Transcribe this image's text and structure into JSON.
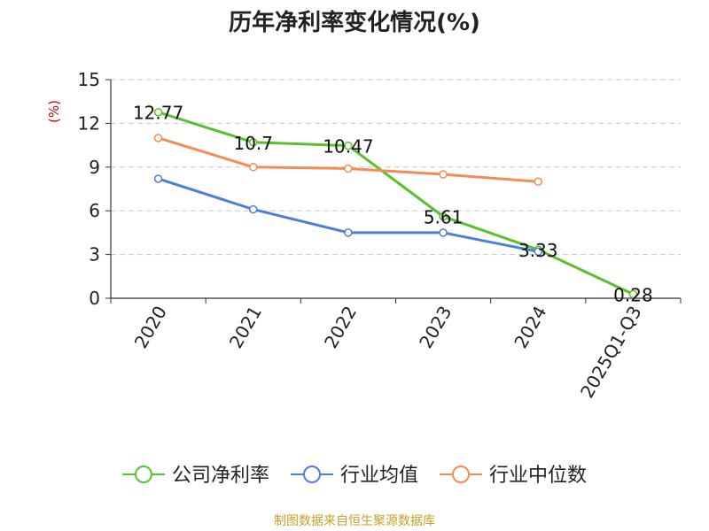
{
  "source_note": "制图数据来自恒生聚源数据库",
  "chart_data": {
    "type": "line",
    "title": "历年净利率变化情况(%)",
    "xlabel": "",
    "ylabel": "(%)",
    "categories": [
      "2020",
      "2021",
      "2022",
      "2023",
      "2024",
      "2025Q1-Q3"
    ],
    "ylim": [
      0,
      15
    ],
    "yticks": [
      0,
      3,
      6,
      9,
      12,
      15
    ],
    "grid": true,
    "legend_position": "bottom",
    "series": [
      {
        "name": "公司净利率",
        "color": "#5ac02c",
        "values": [
          12.77,
          10.7,
          10.47,
          5.61,
          3.33,
          0.28
        ],
        "labels": [
          "12.77",
          "10.7",
          "10.47",
          "5.61",
          "3.33",
          "0.28"
        ]
      },
      {
        "name": "行业均值",
        "color": "#4e7fd8",
        "values": [
          8.2,
          6.1,
          4.5,
          4.5,
          3.2,
          null
        ]
      },
      {
        "name": "行业中位数",
        "color": "#f58c55",
        "values": [
          11.0,
          9.0,
          8.9,
          8.5,
          8.0,
          null
        ]
      }
    ]
  }
}
